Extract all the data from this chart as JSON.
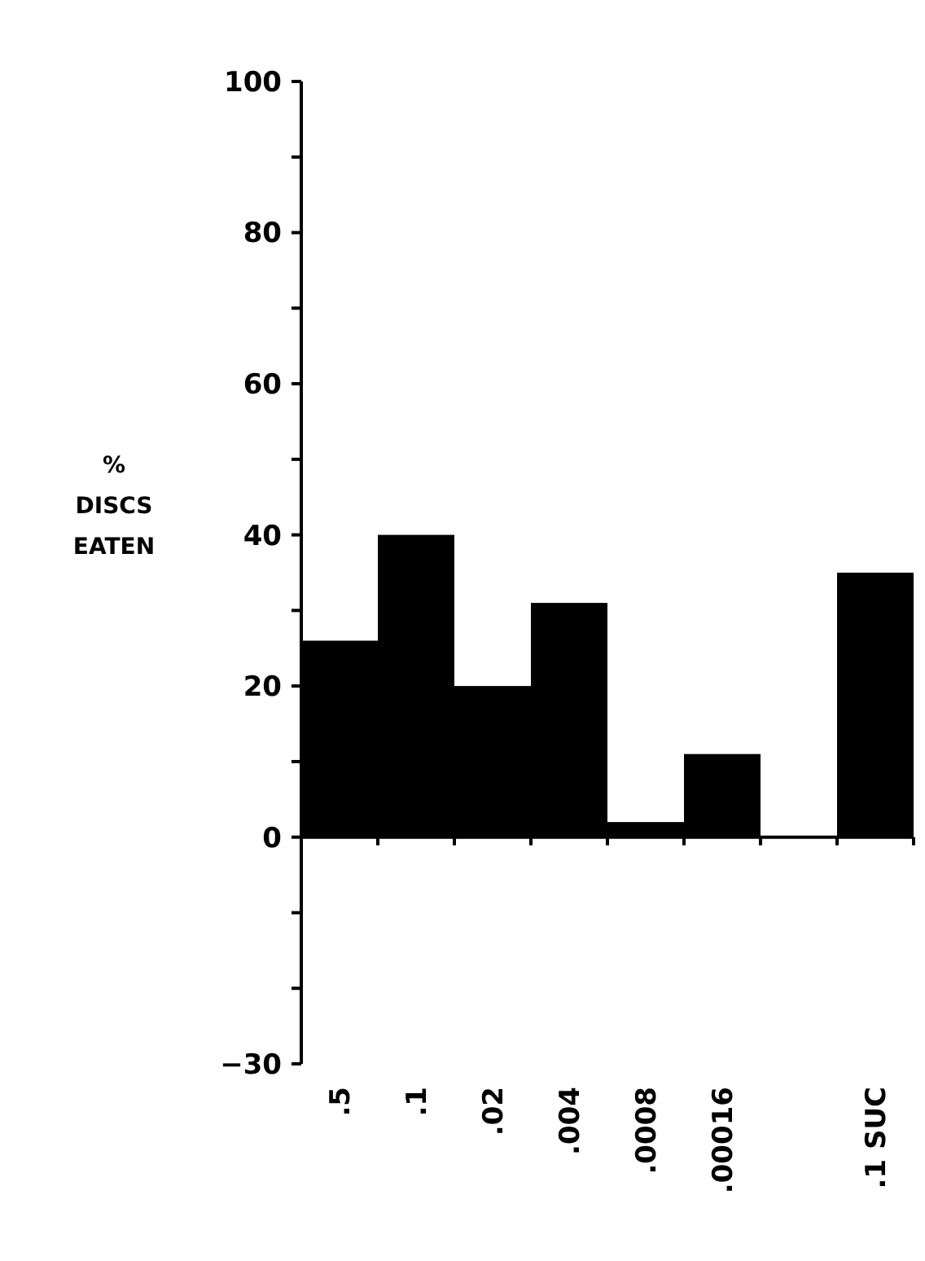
{
  "chart_data": {
    "type": "bar",
    "ylabel": "% DISCS EATEN",
    "categories": [
      ".5",
      ".1",
      ".02",
      ".004",
      ".0008",
      ".00016",
      null,
      ".1 SUC"
    ],
    "values": [
      26,
      40,
      20,
      31,
      2,
      11,
      0,
      35
    ],
    "color": "#000000",
    "ylim": [
      -30,
      100
    ],
    "yticks": [
      -30,
      {
        "value": -20,
        "label": null
      },
      {
        "value": -10,
        "label": null
      },
      0,
      {
        "value": 10,
        "label": null
      },
      20,
      {
        "value": 30,
        "label": null
      },
      40,
      {
        "value": 50,
        "label": null
      },
      60,
      {
        "value": 70,
        "label": null
      },
      80,
      {
        "value": 90,
        "label": null
      },
      100
    ]
  }
}
